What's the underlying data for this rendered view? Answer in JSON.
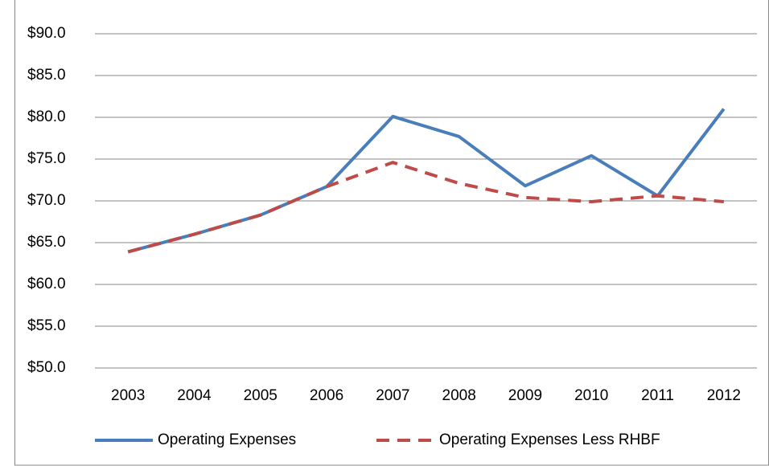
{
  "chart_data": {
    "type": "line",
    "categories": [
      "2003",
      "2004",
      "2005",
      "2006",
      "2007",
      "2008",
      "2009",
      "2010",
      "2011",
      "2012"
    ],
    "series": [
      {
        "name": "Operating Expenses",
        "color": "#4a7ebb",
        "dash": false,
        "values": [
          63.9,
          66.0,
          68.3,
          71.7,
          80.1,
          77.7,
          71.8,
          75.4,
          70.6,
          81.0
        ]
      },
      {
        "name": "Operating Expenses Less RHBF",
        "color": "#be4b48",
        "dash": true,
        "values": [
          63.9,
          66.0,
          68.3,
          71.7,
          74.6,
          72.1,
          70.4,
          69.9,
          70.6,
          69.9
        ]
      }
    ],
    "ylim": [
      50,
      90
    ],
    "yticks": [
      {
        "value": 50,
        "label": "$50.0"
      },
      {
        "value": 55,
        "label": "$55.0"
      },
      {
        "value": 60,
        "label": "$60.0"
      },
      {
        "value": 65,
        "label": "$65.0"
      },
      {
        "value": 70,
        "label": "$70.0"
      },
      {
        "value": 75,
        "label": "$75.0"
      },
      {
        "value": 80,
        "label": "$80.0"
      },
      {
        "value": 85,
        "label": "$85.0"
      },
      {
        "value": 90,
        "label": "$90.0"
      }
    ],
    "grid": true,
    "legend": "bottom"
  }
}
